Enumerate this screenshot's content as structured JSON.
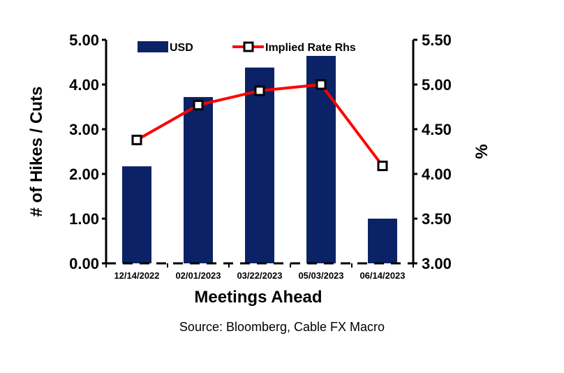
{
  "chart_data": {
    "type": "bar",
    "categories": [
      "12/14/2022",
      "02/01/2023",
      "03/22/2023",
      "05/03/2023",
      "06/14/2023"
    ],
    "series": [
      {
        "name": "USD",
        "type": "bar",
        "axis": "left",
        "color": "#0b2366",
        "values": [
          2.17,
          3.72,
          4.38,
          4.64,
          1.0
        ]
      },
      {
        "name": "Implied Rate Rhs",
        "type": "line",
        "axis": "right",
        "color": "#ff0000",
        "values": [
          4.38,
          4.77,
          4.93,
          5.0,
          4.09
        ]
      }
    ],
    "xlabel": "Meetings Ahead",
    "ylabel": "# of Hikes / Cuts",
    "ylabel_right": "%",
    "ylim": [
      0,
      5
    ],
    "ylim_right": [
      3,
      5.5
    ],
    "yticks": [
      "0.00",
      "1.00",
      "2.00",
      "3.00",
      "4.00",
      "5.00"
    ],
    "yticks_right": [
      "3.00",
      "3.50",
      "4.00",
      "4.50",
      "5.00",
      "5.50"
    ],
    "legend_position": "top",
    "grid": false,
    "source": "Source: Bloomberg, Cable FX Macro"
  }
}
